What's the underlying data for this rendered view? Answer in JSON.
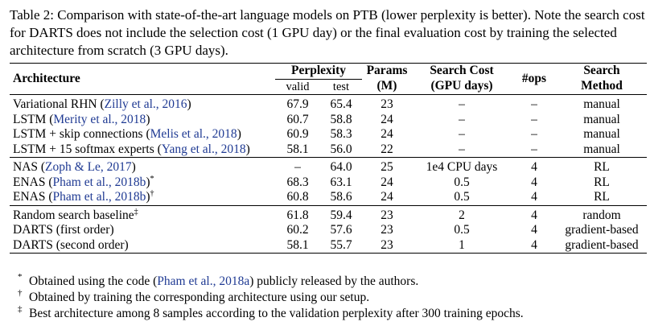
{
  "caption": "Table 2: Comparison with state-of-the-art language models on PTB (lower perplexity is better). Note the search cost for DARTS does not include the selection cost (1 GPU day) or the final evaluation cost by training the selected architecture from scratch (3 GPU days).",
  "header": {
    "architecture": "Architecture",
    "perplexity": "Perplexity",
    "valid": "valid",
    "test": "test",
    "params_l1": "Params",
    "params_l2": "(M)",
    "cost_l1": "Search Cost",
    "cost_l2": "(GPU days)",
    "ops": "#ops",
    "method_l1": "Search",
    "method_l2": "Method"
  },
  "groups": [
    [
      {
        "pre": "Variational RHN (",
        "cite": "Zilly et al., 2016",
        "post": ")",
        "mark": "",
        "valid": "67.9",
        "test": "65.4",
        "params": "23",
        "cost": "–",
        "ops": "–",
        "method": "manual"
      },
      {
        "pre": "LSTM (",
        "cite": "Merity et al., 2018",
        "post": ")",
        "mark": "",
        "valid": "60.7",
        "test": "58.8",
        "params": "24",
        "cost": "–",
        "ops": "–",
        "method": "manual"
      },
      {
        "pre": "LSTM + skip connections (",
        "cite": "Melis et al., 2018",
        "post": ")",
        "mark": "",
        "valid": "60.9",
        "test": "58.3",
        "params": "24",
        "cost": "–",
        "ops": "–",
        "method": "manual"
      },
      {
        "pre": "LSTM + 15 softmax experts (",
        "cite": "Yang et al., 2018",
        "post": ")",
        "mark": "",
        "valid": "58.1",
        "test": "56.0",
        "params": "22",
        "cost": "–",
        "ops": "–",
        "method": "manual"
      }
    ],
    [
      {
        "pre": "NAS (",
        "cite": "Zoph & Le, 2017",
        "post": ")",
        "mark": "",
        "valid": "–",
        "test": "64.0",
        "params": "25",
        "cost": "1e4 CPU days",
        "ops": "4",
        "method": "RL"
      },
      {
        "pre": "ENAS (",
        "cite": "Pham et al., 2018b",
        "post": ")",
        "mark": "*",
        "valid": "68.3",
        "test": "63.1",
        "params": "24",
        "cost": "0.5",
        "ops": "4",
        "method": "RL"
      },
      {
        "pre": "ENAS (",
        "cite": "Pham et al., 2018b",
        "post": ")",
        "mark": "†",
        "valid": "60.8",
        "test": "58.6",
        "params": "24",
        "cost": "0.5",
        "ops": "4",
        "method": "RL"
      }
    ],
    [
      {
        "pre": "Random search baseline",
        "cite": "",
        "post": "",
        "mark": "‡",
        "valid": "61.8",
        "test": "59.4",
        "params": "23",
        "cost": "2",
        "ops": "4",
        "method": "random"
      },
      {
        "pre": "DARTS (first order)",
        "cite": "",
        "post": "",
        "mark": "",
        "valid": "60.2",
        "test": "57.6",
        "params": "23",
        "cost": "0.5",
        "ops": "4",
        "method": "gradient-based"
      },
      {
        "pre": "DARTS (second order)",
        "cite": "",
        "post": "",
        "mark": "",
        "valid": "58.1",
        "test": "55.7",
        "params": "23",
        "cost": "1",
        "ops": "4",
        "method": "gradient-based"
      }
    ]
  ],
  "footnotes": [
    {
      "mark": "*",
      "pre": "Obtained using the code (",
      "cite": "Pham et al., 2018a",
      "post": ") publicly released by the authors."
    },
    {
      "mark": "†",
      "pre": "Obtained by training the corresponding architecture using our setup.",
      "cite": "",
      "post": ""
    },
    {
      "mark": "‡",
      "pre": "Best architecture among 8 samples according to the validation perplexity after 300 training epochs.",
      "cite": "",
      "post": ""
    }
  ]
}
